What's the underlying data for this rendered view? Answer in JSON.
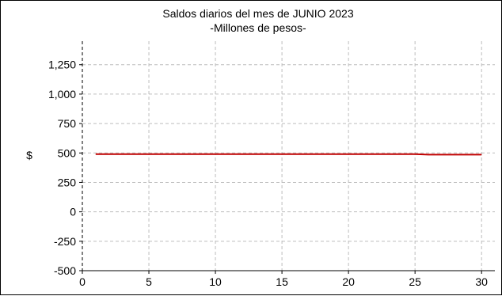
{
  "chart_data": {
    "type": "line",
    "title": "Saldos diarios del mes de JUNIO 2023",
    "subtitle": "-Millones de pesos-",
    "xlabel": "",
    "ylabel": "$",
    "xlim": [
      0,
      31
    ],
    "ylim": [
      -500,
      1450
    ],
    "xticks": [
      0,
      5,
      10,
      15,
      20,
      25,
      30
    ],
    "yticks": [
      -500,
      -250,
      0,
      250,
      500,
      750,
      1000,
      1250
    ],
    "xtick_labels": [
      "0",
      "5",
      "10",
      "15",
      "20",
      "25",
      "30"
    ],
    "ytick_labels": [
      "-500",
      "-250",
      "0",
      "250",
      "500",
      "750",
      "1,000",
      "1,250"
    ],
    "grid": true,
    "series": [
      {
        "color": "#c00000",
        "x": [
          1,
          2,
          3,
          4,
          5,
          6,
          7,
          8,
          9,
          10,
          11,
          12,
          13,
          14,
          15,
          16,
          17,
          18,
          19,
          20,
          21,
          22,
          23,
          24,
          25,
          26,
          27,
          28,
          29,
          30
        ],
        "y": [
          490,
          490,
          490,
          490,
          490,
          490,
          490,
          490,
          490,
          490,
          490,
          490,
          490,
          490,
          490,
          490,
          490,
          490,
          490,
          490,
          490,
          490,
          490,
          490,
          490,
          486,
          486,
          486,
          486,
          486
        ]
      }
    ]
  }
}
